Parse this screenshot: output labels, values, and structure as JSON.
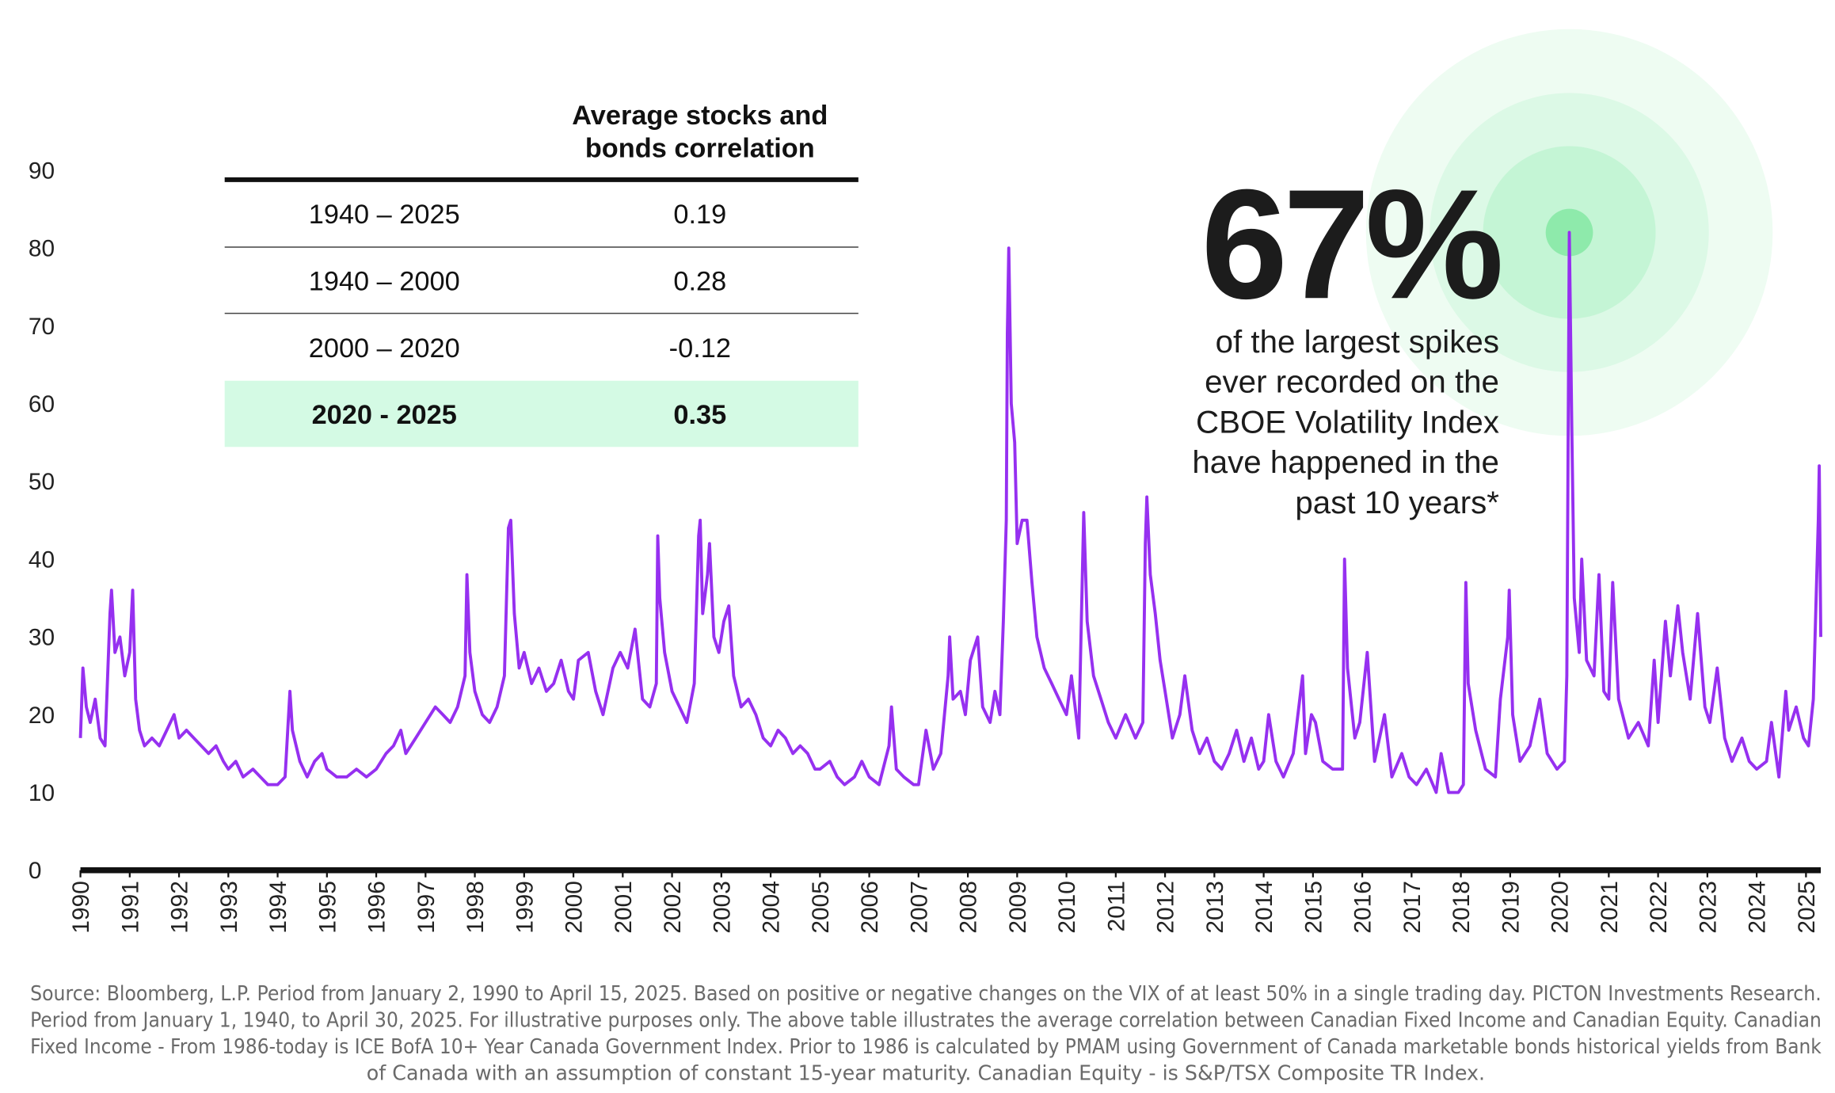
{
  "chart_data": {
    "type": "line",
    "color": "#9630f0",
    "x": [
      1990.0,
      1990.05,
      1990.12,
      1990.2,
      1990.3,
      1990.4,
      1990.5,
      1990.6,
      1990.63,
      1990.7,
      1990.8,
      1990.9,
      1991.0,
      1991.06,
      1991.12,
      1991.2,
      1991.3,
      1991.45,
      1991.6,
      1991.75,
      1991.9,
      1992.0,
      1992.15,
      1992.3,
      1992.45,
      1992.6,
      1992.75,
      1992.9,
      1993.0,
      1993.15,
      1993.3,
      1993.5,
      1993.65,
      1993.8,
      1994.0,
      1994.15,
      1994.25,
      1994.3,
      1994.45,
      1994.6,
      1994.75,
      1994.9,
      1995.0,
      1995.2,
      1995.4,
      1995.6,
      1995.8,
      1996.0,
      1996.2,
      1996.35,
      1996.5,
      1996.6,
      1996.8,
      1997.0,
      1997.2,
      1997.35,
      1997.5,
      1997.65,
      1997.8,
      1997.84,
      1997.9,
      1998.0,
      1998.15,
      1998.3,
      1998.45,
      1998.6,
      1998.68,
      1998.73,
      1998.8,
      1998.9,
      1999.0,
      1999.15,
      1999.3,
      1999.45,
      1999.6,
      1999.75,
      1999.9,
      2000.0,
      2000.1,
      2000.3,
      2000.45,
      2000.6,
      2000.8,
      2000.95,
      2001.1,
      2001.25,
      2001.4,
      2001.55,
      2001.68,
      2001.71,
      2001.75,
      2001.85,
      2002.0,
      2002.15,
      2002.3,
      2002.45,
      2002.54,
      2002.57,
      2002.62,
      2002.72,
      2002.76,
      2002.85,
      2002.95,
      2003.05,
      2003.15,
      2003.25,
      2003.4,
      2003.55,
      2003.7,
      2003.85,
      2004.0,
      2004.15,
      2004.3,
      2004.45,
      2004.6,
      2004.75,
      2004.9,
      2005.0,
      2005.2,
      2005.35,
      2005.5,
      2005.7,
      2005.85,
      2006.0,
      2006.2,
      2006.4,
      2006.45,
      2006.55,
      2006.7,
      2006.9,
      2007.0,
      2007.15,
      2007.3,
      2007.45,
      2007.6,
      2007.63,
      2007.7,
      2007.85,
      2007.95,
      2008.05,
      2008.2,
      2008.3,
      2008.45,
      2008.55,
      2008.65,
      2008.72,
      2008.78,
      2008.8,
      2008.83,
      2008.88,
      2008.95,
      2009.0,
      2009.1,
      2009.2,
      2009.3,
      2009.4,
      2009.55,
      2009.7,
      2009.85,
      2010.0,
      2010.1,
      2010.25,
      2010.35,
      2010.42,
      2010.55,
      2010.7,
      2010.85,
      2011.0,
      2011.2,
      2011.4,
      2011.55,
      2011.6,
      2011.63,
      2011.7,
      2011.8,
      2011.9,
      2012.0,
      2012.15,
      2012.3,
      2012.4,
      2012.55,
      2012.7,
      2012.85,
      2013.0,
      2013.15,
      2013.3,
      2013.45,
      2013.6,
      2013.75,
      2013.9,
      2014.0,
      2014.1,
      2014.25,
      2014.4,
      2014.6,
      2014.79,
      2014.85,
      2014.97,
      2015.05,
      2015.2,
      2015.4,
      2015.6,
      2015.64,
      2015.7,
      2015.85,
      2015.95,
      2016.05,
      2016.1,
      2016.25,
      2016.45,
      2016.6,
      2016.8,
      2016.95,
      2017.1,
      2017.3,
      2017.5,
      2017.6,
      2017.75,
      2017.95,
      2018.05,
      2018.1,
      2018.15,
      2018.3,
      2018.5,
      2018.7,
      2018.8,
      2018.95,
      2018.98,
      2019.05,
      2019.2,
      2019.4,
      2019.6,
      2019.75,
      2019.95,
      2020.1,
      2020.15,
      2020.2,
      2020.25,
      2020.3,
      2020.4,
      2020.45,
      2020.55,
      2020.7,
      2020.8,
      2020.9,
      2021.0,
      2021.08,
      2021.2,
      2021.4,
      2021.6,
      2021.8,
      2021.92,
      2022.0,
      2022.15,
      2022.25,
      2022.4,
      2022.5,
      2022.65,
      2022.8,
      2022.95,
      2023.05,
      2023.2,
      2023.35,
      2023.5,
      2023.7,
      2023.85,
      2024.0,
      2024.2,
      2024.3,
      2024.45,
      2024.59,
      2024.65,
      2024.8,
      2024.95,
      2025.05,
      2025.15,
      2025.25,
      2025.27,
      2025.3
    ],
    "values": [
      17,
      26,
      21,
      19,
      22,
      17,
      16,
      33,
      36,
      28,
      30,
      25,
      28,
      36,
      22,
      18,
      16,
      17,
      16,
      18,
      20,
      17,
      18,
      17,
      16,
      15,
      16,
      14,
      13,
      14,
      12,
      13,
      12,
      11,
      11,
      12,
      23,
      18,
      14,
      12,
      14,
      15,
      13,
      12,
      12,
      13,
      12,
      13,
      15,
      16,
      18,
      15,
      17,
      19,
      21,
      20,
      19,
      21,
      25,
      38,
      28,
      23,
      20,
      19,
      21,
      25,
      44,
      45,
      33,
      26,
      28,
      24,
      26,
      23,
      24,
      27,
      23,
      22,
      27,
      28,
      23,
      20,
      26,
      28,
      26,
      31,
      22,
      21,
      24,
      43,
      35,
      28,
      23,
      21,
      19,
      24,
      43,
      45,
      33,
      38,
      42,
      30,
      28,
      32,
      34,
      25,
      21,
      22,
      20,
      17,
      16,
      18,
      17,
      15,
      16,
      15,
      13,
      13,
      14,
      12,
      11,
      12,
      14,
      12,
      11,
      16,
      21,
      13,
      12,
      11,
      11,
      18,
      13,
      15,
      25,
      30,
      22,
      23,
      20,
      27,
      30,
      21,
      19,
      23,
      20,
      32,
      45,
      69,
      80,
      60,
      55,
      42,
      45,
      45,
      37,
      30,
      26,
      24,
      22,
      20,
      25,
      17,
      46,
      32,
      25,
      22,
      19,
      17,
      20,
      17,
      19,
      42,
      48,
      38,
      33,
      27,
      23,
      17,
      20,
      25,
      18,
      15,
      17,
      14,
      13,
      15,
      18,
      14,
      17,
      13,
      14,
      20,
      14,
      12,
      15,
      25,
      15,
      20,
      19,
      14,
      13,
      13,
      40,
      26,
      17,
      19,
      25,
      28,
      14,
      20,
      12,
      15,
      12,
      11,
      13,
      10,
      15,
      10,
      10,
      11,
      37,
      24,
      18,
      13,
      12,
      22,
      30,
      36,
      20,
      14,
      16,
      22,
      15,
      13,
      14,
      25,
      82,
      57,
      35,
      28,
      40,
      27,
      25,
      38,
      23,
      22,
      37,
      22,
      17,
      19,
      16,
      27,
      19,
      32,
      25,
      34,
      28,
      22,
      33,
      21,
      19,
      26,
      17,
      14,
      17,
      14,
      13,
      14,
      19,
      12,
      23,
      18,
      21,
      17,
      16,
      22,
      45,
      52,
      30
    ],
    "xlim": [
      1990,
      2025.3
    ],
    "xticks": [
      1990,
      1991,
      1992,
      1993,
      1994,
      1995,
      1996,
      1997,
      1998,
      1999,
      2000,
      2001,
      2002,
      2003,
      2004,
      2005,
      2006,
      2007,
      2008,
      2009,
      2010,
      2011,
      2012,
      2013,
      2014,
      2015,
      2016,
      2017,
      2018,
      2019,
      2020,
      2021,
      2022,
      2023,
      2024,
      2025
    ],
    "ylim": [
      0,
      90
    ],
    "yticks": [
      0,
      10,
      20,
      30,
      40,
      50,
      60,
      70,
      80,
      90
    ]
  },
  "table": {
    "header": [
      "Average stocks and",
      "bonds correlation"
    ],
    "rows": [
      [
        "1940 – 2025",
        "0.19"
      ],
      [
        "1940 – 2000",
        "0.28"
      ],
      [
        "2000 – 2020",
        "-0.12"
      ],
      [
        "2020 - 2025",
        "0.35"
      ]
    ]
  },
  "annotation": {
    "headline": "67%",
    "lines": [
      "of the largest spikes",
      "ever recorded on the",
      "CBOE Volatility Index",
      "have happened in the",
      "past 10 years*"
    ]
  },
  "source": [
    "Source: Bloomberg, L.P. Period from January 2, 1990 to April 15, 2025. Based on positive or negative changes on the VIX of at least 50% in a single trading day. PICTON Investments Research.",
    "Period from January 1, 1940, to April 30, 2025. For illustrative purposes only. The above table illustrates the average correlation between Canadian Fixed Income and Canadian Equity. Canadian",
    "Fixed Income - From 1986-today is ICE BofA 10+ Year Canada Government Index. Prior to 1986 is calculated by PMAM using Government of Canada marketable bonds historical yields from Bank",
    "of Canada with an assumption of constant 15-year maturity. Canadian Equity - is S&P/TSX Composite TR Index."
  ]
}
